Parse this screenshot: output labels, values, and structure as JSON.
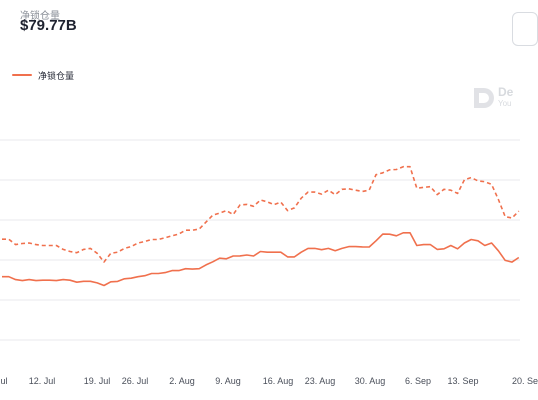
{
  "header": {
    "subtitle": "净锁仓量",
    "value": "$79.77B"
  },
  "watermark": {
    "text": "De",
    "subtext": "You"
  },
  "chart_data": {
    "type": "line",
    "title": "$79.77B",
    "legend": {
      "placement": "top-left",
      "entries": [
        "净锁仓量"
      ]
    },
    "grid": {
      "horizontal": true,
      "vertical": false
    },
    "colors": {
      "line": "#f0704d",
      "grid": "#e8eaee"
    },
    "x_tick_labels": [
      "ul",
      "12. Jul",
      "19. Jul",
      "26. Jul",
      "2. Aug",
      "9. Aug",
      "16. Aug",
      "23. Aug",
      "30. Aug",
      "6. Sep",
      "13. Sep",
      "20. Se"
    ],
    "series": [
      {
        "name": "净锁仓量",
        "style": "solid",
        "x": [
          0,
          1,
          2,
          3,
          4,
          5,
          6,
          7,
          8,
          9,
          10,
          11,
          12,
          13,
          14,
          15,
          16,
          17,
          18,
          19,
          20,
          21,
          22,
          23,
          24,
          25,
          26,
          27,
          28,
          29,
          30,
          31,
          32,
          33,
          34,
          35,
          36,
          37,
          38,
          39,
          40,
          41,
          42,
          43,
          44,
          45,
          46,
          47,
          48,
          49,
          50,
          51,
          52,
          53,
          54,
          55,
          56,
          57,
          58,
          59,
          60,
          61,
          62,
          63,
          64,
          65,
          66,
          67,
          68,
          69,
          70,
          71,
          72,
          73,
          74,
          75,
          76
        ],
        "values": [
          103.3,
          103.3,
          100.4,
          99.4,
          100.4,
          99.4,
          99.8,
          99.8,
          99.4,
          100.4,
          99.8,
          97.8,
          98.7,
          98.7,
          97.1,
          94.5,
          98.2,
          98.6,
          101.2,
          101.8,
          103.3,
          104.3,
          106.5,
          106.5,
          107.4,
          109.4,
          109.4,
          111.3,
          110.9,
          111.3,
          115.1,
          118.2,
          121.8,
          121.2,
          124.0,
          124.1,
          125.0,
          124.0,
          128.5,
          127.8,
          127.8,
          127.8,
          123.1,
          123.1,
          127.8,
          131.6,
          131.6,
          130.3,
          131.6,
          129.3,
          131.6,
          133.4,
          133.4,
          133.1,
          133.0,
          139.2,
          145.9,
          145.8,
          144.2,
          147.2,
          147.2,
          134.5,
          135.4,
          135.4,
          130.6,
          131.2,
          134.5,
          131.2,
          137.0,
          140.5,
          139.2,
          134.5,
          137.0,
          129.2,
          119.6,
          117.9,
          122.5
        ]
      },
      {
        "name": "",
        "style": "dashed",
        "x": [
          0,
          1,
          2,
          3,
          4,
          5,
          6,
          7,
          8,
          9,
          10,
          11,
          12,
          13,
          14,
          15,
          16,
          17,
          18,
          19,
          20,
          21,
          22,
          23,
          24,
          25,
          26,
          27,
          28,
          29,
          30,
          31,
          32,
          33,
          34,
          35,
          36,
          37,
          38,
          39,
          40,
          41,
          42,
          43,
          44,
          45,
          46,
          47,
          48,
          49,
          50,
          51,
          52,
          53,
          54,
          55,
          56,
          57,
          58,
          59,
          60,
          61,
          62,
          63,
          64,
          65,
          66,
          67,
          68,
          69,
          70,
          71,
          72,
          73,
          74,
          75,
          76
        ],
        "values": [
          140.8,
          140.8,
          135.4,
          136.5,
          137.0,
          135.4,
          134.5,
          134.5,
          134.5,
          130.6,
          128.5,
          127.3,
          130.6,
          131.6,
          126.7,
          118.0,
          126.7,
          127.8,
          131.6,
          133.4,
          137.0,
          138.5,
          140.5,
          140.5,
          142.3,
          144.2,
          145.9,
          149.8,
          149.8,
          150.9,
          157.9,
          164.9,
          166.9,
          169.4,
          165.5,
          175.1,
          175.6,
          173.7,
          180.0,
          178.2,
          175.4,
          177.9,
          169.4,
          172.1,
          181.8,
          187.9,
          187.9,
          185.9,
          189.8,
          185.4,
          190.7,
          191.2,
          189.8,
          188.5,
          189.8,
          205.3,
          207.2,
          210.2,
          210.5,
          213.3,
          213.3,
          191.8,
          192.6,
          193.4,
          185.4,
          190.7,
          189.8,
          186.6,
          200.2,
          202.4,
          199.1,
          198.3,
          195.6,
          180.5,
          163.3,
          162.0,
          168.9
        ]
      }
    ],
    "ylim": [
      0,
      280
    ]
  }
}
